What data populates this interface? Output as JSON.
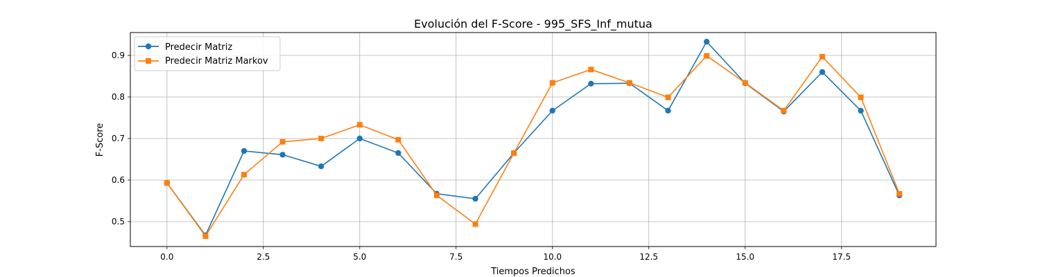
{
  "chart_data": {
    "type": "line",
    "title": "Evolución del F-Score - 995_SFS_Inf_mutua",
    "xlabel": "Tiempos Predichos",
    "ylabel": "F-Score",
    "x": [
      0,
      1,
      2,
      3,
      4,
      5,
      6,
      7,
      8,
      9,
      10,
      11,
      12,
      13,
      14,
      15,
      16,
      17,
      18,
      19
    ],
    "xlim": [
      -0.95,
      19.95
    ],
    "ylim": [
      0.44,
      0.955
    ],
    "xticks": [
      0,
      2.5,
      5,
      7.5,
      10,
      12.5,
      15,
      17.5
    ],
    "xtick_labels": [
      "0.0",
      "2.5",
      "5.0",
      "7.5",
      "10.0",
      "12.5",
      "15.0",
      "17.5"
    ],
    "yticks": [
      0.5,
      0.6,
      0.7,
      0.8,
      0.9
    ],
    "ytick_labels": [
      "0.5",
      "0.6",
      "0.7",
      "0.8",
      "0.9"
    ],
    "grid": true,
    "legend_position": "top-left",
    "series": [
      {
        "name": "Predecir Matriz",
        "color": "#1f77b4",
        "marker": "circle",
        "values": [
          0.593,
          0.467,
          0.67,
          0.661,
          0.633,
          0.7,
          0.665,
          0.567,
          0.555,
          0.665,
          0.767,
          0.832,
          0.833,
          0.767,
          0.933,
          0.833,
          0.765,
          0.86,
          0.767,
          0.563
        ]
      },
      {
        "name": "Predecir Matriz Markov",
        "color": "#ff7f0e",
        "marker": "square",
        "values": [
          0.593,
          0.465,
          0.613,
          0.692,
          0.7,
          0.733,
          0.697,
          0.563,
          0.494,
          0.665,
          0.834,
          0.866,
          0.834,
          0.799,
          0.899,
          0.834,
          0.767,
          0.897,
          0.799,
          0.567
        ]
      }
    ]
  }
}
